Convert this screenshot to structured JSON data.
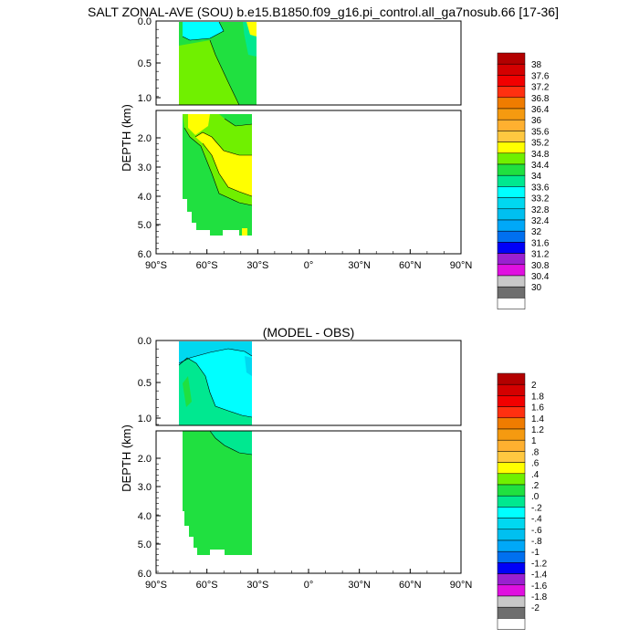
{
  "chart_data": [
    {
      "type": "heatmap",
      "title": "SALT ZONAL-AVE (SOU) b.e15.B1850.f09_g16.pi_control.all_ga7nosub.66 [17-36]",
      "ylabel": "DEPTH (km)",
      "x_ticks": [
        "90°S",
        "60°S",
        "30°S",
        "0°",
        "30°N",
        "60°N",
        "90°N"
      ],
      "upper_y_ticks": [
        "0.0",
        "0.5",
        "1.0"
      ],
      "lower_y_ticks": [
        "2.0",
        "3.0",
        "4.0",
        "5.0",
        "6.0"
      ],
      "colorbar_labels": [
        "38",
        "37.6",
        "37.2",
        "36.8",
        "36.4",
        "36",
        "35.6",
        "35.2",
        "34.8",
        "34.4",
        "34",
        "33.6",
        "33.2",
        "32.8",
        "32.4",
        "32",
        "31.6",
        "31.2",
        "30.8",
        "30.4",
        "30"
      ],
      "colorbar_colors": [
        "#b30000",
        "#d40000",
        "#f20000",
        "#ff3010",
        "#f07c00",
        "#f59a10",
        "#ffb030",
        "#ffc840",
        "#ffff00",
        "#70f000",
        "#20e040",
        "#00e890",
        "#00ffff",
        "#00d8f0",
        "#00c0f0",
        "#00a8f8",
        "#0070f0",
        "#0000f8",
        "#9a20d0",
        "#e010e0",
        "#c8c8c8",
        "#6e6e6e",
        "#ffffff"
      ]
    },
    {
      "type": "heatmap",
      "title": "(MODEL - OBS)",
      "ylabel": "DEPTH (km)",
      "x_ticks": [
        "90°S",
        "60°S",
        "30°S",
        "0°",
        "30°N",
        "60°N",
        "90°N"
      ],
      "upper_y_ticks": [
        "0.0",
        "0.5",
        "1.0"
      ],
      "lower_y_ticks": [
        "2.0",
        "3.0",
        "4.0",
        "5.0",
        "6.0"
      ],
      "colorbar_labels": [
        "2",
        "1.8",
        "1.6",
        "1.4",
        "1.2",
        "1",
        ".8",
        ".6",
        ".4",
        ".2",
        ".0",
        "-.2",
        "-.4",
        "-.6",
        "-.8",
        "-1",
        "-1.2",
        "-1.4",
        "-1.6",
        "-1.8",
        "-2"
      ],
      "colorbar_colors": [
        "#b30000",
        "#d40000",
        "#f20000",
        "#ff3010",
        "#f07c00",
        "#f59a10",
        "#ffb030",
        "#ffc840",
        "#ffff00",
        "#70f000",
        "#20e040",
        "#00e890",
        "#00ffff",
        "#00d8f0",
        "#00c0f0",
        "#00a8f8",
        "#0070f0",
        "#0000f8",
        "#9a20d0",
        "#e010e0",
        "#c8c8c8",
        "#6e6e6e",
        "#ffffff"
      ]
    }
  ]
}
